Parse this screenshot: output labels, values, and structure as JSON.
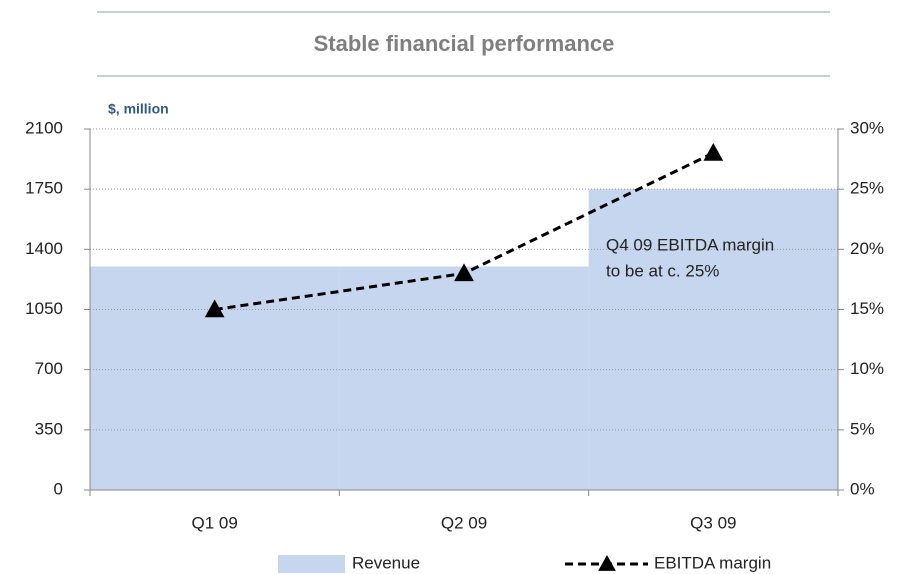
{
  "chart_data": {
    "type": "bar_line",
    "title": "Stable financial performance",
    "unit_label": "$, million",
    "annotation": [
      "Q4 09 EBITDA margin",
      "to  be at c. 25%"
    ],
    "categories": [
      "Q1 09",
      "Q2 09",
      "Q3 09"
    ],
    "series": [
      {
        "name": "Revenue",
        "color": "#c6d6ee",
        "type": "bar",
        "values": [
          1300,
          1300,
          1750
        ]
      },
      {
        "name": "EBITDA margin",
        "color": "#000000",
        "type": "line",
        "axis": "y2",
        "values": [
          15,
          18,
          28
        ]
      }
    ],
    "ylim": [
      0,
      2100
    ],
    "yticks": [
      0,
      350,
      700,
      1050,
      1400,
      1750,
      2100
    ],
    "y2lim": [
      0,
      30
    ],
    "y2ticks": [
      {
        "value": 0,
        "label": "0%"
      },
      {
        "value": 5,
        "label": "5%"
      },
      {
        "value": 10,
        "label": "10%"
      },
      {
        "value": 15,
        "label": "15%"
      },
      {
        "value": 20,
        "label": "20%"
      },
      {
        "value": 25,
        "label": "25%"
      },
      {
        "value": 30,
        "label": "30%"
      }
    ],
    "grid": true
  }
}
